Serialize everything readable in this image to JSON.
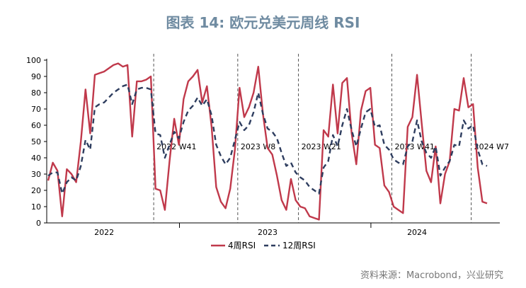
{
  "title": "图表 14: 欧元兑美元周线 RSI",
  "source": "资料来源：Macrobond，兴业研究",
  "chart_data": {
    "type": "line",
    "ylim": [
      0,
      100
    ],
    "yticks": [
      0,
      10,
      20,
      30,
      40,
      50,
      60,
      70,
      80,
      90,
      100
    ],
    "years": [
      "2022",
      "2023",
      "2024"
    ],
    "grid": false,
    "legend_position": "bottom",
    "colors": {
      "rsi4": "#c0394b",
      "rsi12": "#2e3d5f",
      "vline": "#555555"
    },
    "annotations": [
      {
        "text": "2022 W41",
        "x": 22
      },
      {
        "text": "2023 W8",
        "x": 40
      },
      {
        "text": "2023 W21",
        "x": 53
      },
      {
        "text": "2023 W41",
        "x": 73
      },
      {
        "text": "2024 W7",
        "x": 90
      }
    ],
    "series": [
      {
        "name": "4周RSI",
        "values": [
          26,
          37,
          32,
          4,
          33,
          30,
          25,
          50,
          82,
          55,
          91,
          92,
          93,
          95,
          97,
          98,
          96,
          97,
          53,
          87,
          87,
          88,
          90,
          21,
          20,
          8,
          38,
          64,
          48,
          76,
          87,
          90,
          94,
          74,
          84,
          59,
          22,
          13,
          9,
          21,
          45,
          83,
          65,
          71,
          80,
          96,
          67,
          46,
          42,
          29,
          14,
          8,
          27,
          14,
          10,
          9,
          4,
          3,
          2,
          57,
          53,
          85,
          55,
          86,
          89,
          55,
          36,
          69,
          81,
          83,
          48,
          46,
          23,
          19,
          10,
          8,
          6,
          59,
          65,
          91,
          61,
          32,
          25,
          47,
          12,
          30,
          38,
          70,
          69,
          89,
          71,
          73,
          34,
          13,
          12
        ]
      },
      {
        "name": "12周RSI",
        "values": [
          29,
          31,
          31,
          18,
          25,
          28,
          26,
          35,
          51,
          45,
          71,
          73,
          74,
          77,
          80,
          82,
          84,
          85,
          73,
          82,
          83,
          83,
          82,
          55,
          54,
          40,
          48,
          56,
          52,
          62,
          69,
          72,
          77,
          72,
          76,
          66,
          48,
          41,
          36,
          40,
          51,
          62,
          57,
          60,
          68,
          80,
          67,
          58,
          56,
          52,
          43,
          35,
          37,
          31,
          28,
          26,
          22,
          20,
          18,
          34,
          38,
          54,
          47,
          60,
          70,
          57,
          47,
          58,
          68,
          70,
          59,
          60,
          48,
          45,
          39,
          37,
          36,
          47,
          50,
          63,
          50,
          43,
          40,
          47,
          29,
          34,
          38,
          48,
          47,
          63,
          58,
          60,
          45,
          36,
          35
        ]
      }
    ]
  }
}
